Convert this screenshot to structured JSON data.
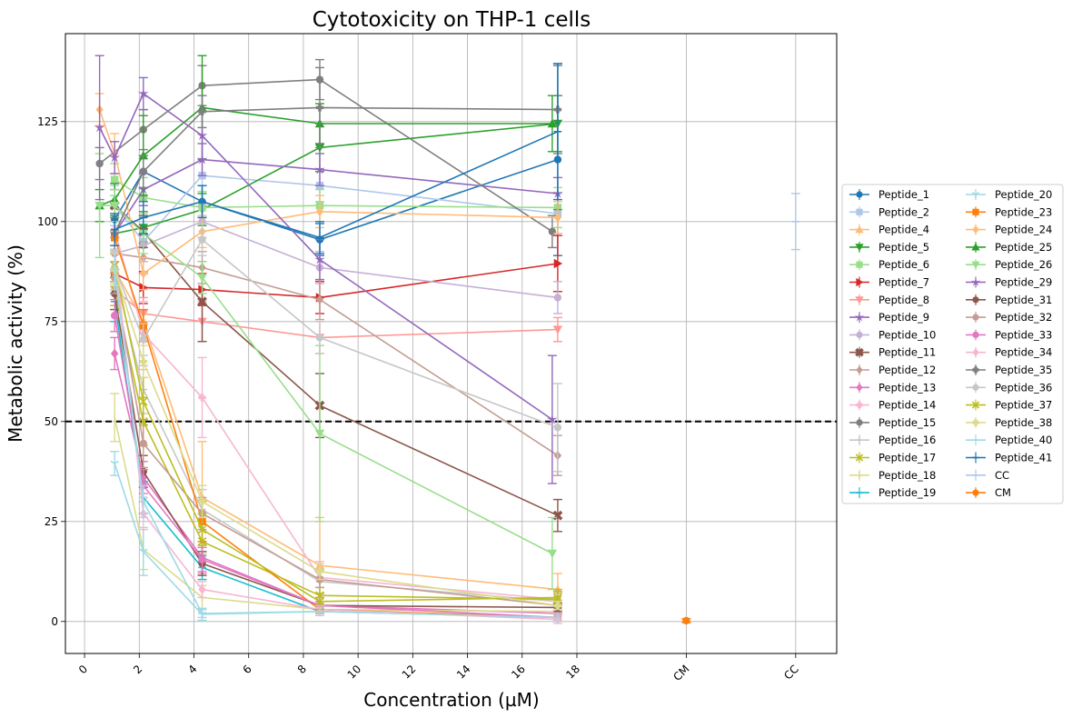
{
  "chart_data": {
    "type": "line",
    "title": "Cytotoxicity on THP-1 cells",
    "xlabel": "Concentration (µM)",
    "ylabel": "Metabolic activity (%)",
    "xlim": [
      -0.7,
      27.5
    ],
    "ylim": [
      -8,
      147
    ],
    "x_ticks": [
      0,
      2,
      4,
      6,
      8,
      10,
      12,
      14,
      16,
      18
    ],
    "x_tick_labels": [
      "0",
      "2",
      "4",
      "6",
      "8",
      "10",
      "12",
      "14",
      "16",
      "18"
    ],
    "x_extra_ticks": [
      {
        "x": 22,
        "label": "CM"
      },
      {
        "x": 26,
        "label": "CC"
      }
    ],
    "y_ticks": [
      0,
      25,
      50,
      75,
      100,
      125
    ],
    "y_tick_labels": [
      "0",
      "25",
      "50",
      "75",
      "100",
      "125"
    ],
    "reference_line": {
      "y": 50,
      "style": "dashed",
      "color": "#000000"
    },
    "grid": true,
    "legend_position": "right",
    "legend_columns": 2,
    "series": [
      {
        "name": "Peptide_1",
        "color": "#1f77b4",
        "marker": "o",
        "x": [
          1.1,
          2.15,
          4.3,
          8.6,
          17.3
        ],
        "y": [
          100.5,
          112.5,
          105,
          95.5,
          115.5
        ],
        "err": [
          3,
          4,
          4,
          4,
          24
        ]
      },
      {
        "name": "Peptide_2",
        "color": "#aec7e8",
        "marker": "s",
        "x": [
          1.1,
          2.15,
          4.3,
          8.6,
          17.3
        ],
        "y": [
          104,
          95,
          111.5,
          109,
          102
        ],
        "err": [
          5,
          5,
          4,
          4,
          5
        ]
      },
      {
        "name": "Peptide_4",
        "color": "#ffbb78",
        "marker": "^",
        "x": [
          1.1,
          2.15,
          4.3,
          8.6,
          17.3
        ],
        "y": [
          88,
          75,
          31,
          14,
          8
        ],
        "err": [
          5,
          12,
          14,
          12,
          4
        ]
      },
      {
        "name": "Peptide_5",
        "color": "#2ca02c",
        "marker": "v",
        "x": [
          1.1,
          2.15,
          4.3,
          8.6,
          17.3
        ],
        "y": [
          97,
          98.5,
          103,
          118.5,
          124.5
        ],
        "err": [
          3,
          4,
          4,
          6,
          7
        ]
      },
      {
        "name": "Peptide_6",
        "color": "#98df8a",
        "marker": "s",
        "x": [
          1.1,
          2.15,
          4.3,
          8.6,
          17.3
        ],
        "y": [
          110.5,
          106,
          103.5,
          104,
          103.5
        ],
        "err": [
          4,
          5,
          4,
          4,
          5
        ]
      },
      {
        "name": "Peptide_7",
        "color": "#d62728",
        "marker": ">",
        "x": [
          1.1,
          2.15,
          4.3,
          8.6,
          17.3
        ],
        "y": [
          87,
          83.5,
          83,
          81,
          89.5
        ],
        "err": [
          5,
          4,
          4,
          4,
          7
        ]
      },
      {
        "name": "Peptide_8",
        "color": "#ff9896",
        "marker": "v",
        "x": [
          1.1,
          2.15,
          4.3,
          8.6,
          17.3
        ],
        "y": [
          83,
          77,
          75,
          71,
          73
        ],
        "err": [
          5,
          4,
          5,
          4,
          3
        ]
      },
      {
        "name": "Peptide_9",
        "color": "#9467bd",
        "marker": "*",
        "x": [
          1.1,
          2.15,
          4.3,
          8.6,
          17.3
        ],
        "y": [
          97,
          108,
          115.5,
          113,
          107
        ],
        "err": [
          4,
          4,
          4,
          4,
          4
        ]
      },
      {
        "name": "Peptide_10",
        "color": "#c5b0d5",
        "marker": "h",
        "x": [
          1.1,
          2.15,
          4.3,
          8.6,
          17.3
        ],
        "y": [
          92,
          94,
          100,
          88.5,
          81
        ],
        "err": [
          4,
          4,
          4,
          4,
          4
        ]
      },
      {
        "name": "Peptide_11",
        "color": "#8c564b",
        "marker": "X",
        "x": [
          1.1,
          2.15,
          4.3,
          8.6,
          17.3
        ],
        "y": [
          104,
          97.5,
          80,
          54,
          26.5
        ],
        "err": [
          4,
          4,
          10,
          8,
          4
        ]
      },
      {
        "name": "Peptide_12",
        "color": "#c49c94",
        "marker": "D",
        "x": [
          1.1,
          2.15,
          4.3,
          8.6,
          17.3
        ],
        "y": [
          92,
          91,
          88.5,
          80.5,
          41.5
        ],
        "err": [
          4,
          4,
          4,
          5,
          5
        ]
      },
      {
        "name": "Peptide_13",
        "color": "#e377c2",
        "marker": "d",
        "x": [
          1.1,
          2.15,
          4.3,
          8.6,
          17.3
        ],
        "y": [
          67,
          36,
          16,
          4,
          2
        ],
        "err": [
          4,
          4,
          4,
          2,
          2
        ]
      },
      {
        "name": "Peptide_14",
        "color": "#f7b6d2",
        "marker": "P",
        "x": [
          1.1,
          2.15,
          4.3,
          8.6,
          17.3
        ],
        "y": [
          98,
          72,
          56,
          11,
          5.5
        ],
        "err": [
          4,
          8,
          10,
          4,
          2
        ]
      },
      {
        "name": "Peptide_15",
        "color": "#7f7f7f",
        "marker": "o",
        "x": [
          0.55,
          2.15,
          4.3,
          8.6,
          17.1
        ],
        "y": [
          114.5,
          123,
          134,
          135.5,
          97.5
        ],
        "err": [
          4,
          5,
          5,
          5,
          4
        ]
      },
      {
        "name": "Peptide_16",
        "color": "#c7c7c7",
        "marker": "+",
        "x": [
          1.1,
          2.15,
          4.3,
          8.6,
          17.3
        ],
        "y": [
          87,
          58,
          28,
          10,
          5
        ],
        "err": [
          5,
          6,
          5,
          3,
          2
        ]
      },
      {
        "name": "Peptide_17",
        "color": "#bcbd22",
        "marker": "x",
        "x": [
          1.1,
          2.15,
          4.3,
          8.6,
          17.3
        ],
        "y": [
          83,
          50,
          20,
          6.5,
          5.5
        ],
        "err": [
          4,
          6,
          5,
          2,
          2
        ]
      },
      {
        "name": "Peptide_18",
        "color": "#dbdb8d",
        "marker": "|",
        "x": [
          1.1,
          2.15,
          4.3,
          8.6,
          17.3
        ],
        "y": [
          51,
          18,
          6,
          3,
          2.5
        ],
        "err": [
          6,
          5,
          3,
          1,
          1
        ]
      },
      {
        "name": "Peptide_19",
        "color": "#17becf",
        "marker": "_",
        "x": [
          1.1,
          2.15,
          4.3,
          8.6,
          17.3
        ],
        "y": [
          80,
          31,
          13.5,
          2.5,
          1
        ],
        "err": [
          5,
          4,
          3,
          1,
          1
        ]
      },
      {
        "name": "Peptide_20",
        "color": "#9edae5",
        "marker": "1",
        "x": [
          1.1,
          2.15,
          4.3,
          8.6,
          17.3
        ],
        "y": [
          39.5,
          17.5,
          1.8,
          2.5,
          1
        ],
        "err": [
          3,
          6,
          1.5,
          1,
          1
        ]
      },
      {
        "name": "Peptide_23",
        "color": "#ff7f0e",
        "marker": "s",
        "x": [
          1.1,
          2.15,
          4.3,
          8.6,
          17.3
        ],
        "y": [
          96,
          74,
          25,
          3,
          1
        ],
        "err": [
          4,
          4,
          5,
          1,
          1
        ]
      },
      {
        "name": "Peptide_24",
        "color": "#ffbb78",
        "marker": "D",
        "x": [
          0.55,
          1.1,
          2.15,
          4.3,
          8.6,
          17.3
        ],
        "y": [
          128,
          117,
          87,
          97.5,
          102.5,
          101
        ],
        "err": [
          4,
          5,
          4,
          4,
          4,
          4
        ]
      },
      {
        "name": "Peptide_25",
        "color": "#2ca02c",
        "marker": "^",
        "x": [
          0.55,
          1.1,
          2.15,
          4.3,
          8.6,
          17.1
        ],
        "y": [
          104,
          105.5,
          116.5,
          128.5,
          124.5,
          124.5
        ],
        "err": [
          4,
          4,
          10,
          13,
          5,
          7
        ]
      },
      {
        "name": "Peptide_26",
        "color": "#98df8a",
        "marker": "v",
        "x": [
          0.55,
          1.1,
          2.15,
          4.3,
          8.6,
          17.1
        ],
        "y": [
          104,
          104,
          97,
          86,
          47,
          17
        ],
        "err": [
          13,
          4,
          5,
          4,
          22,
          9
        ]
      },
      {
        "name": "Peptide_29",
        "color": "#9467bd",
        "marker": "*",
        "x": [
          0.55,
          1.1,
          2.15,
          4.3,
          8.6,
          17.1
        ],
        "y": [
          123.5,
          116,
          132,
          121.5,
          90.5,
          50.5
        ],
        "err": [
          18,
          4,
          4,
          6,
          5,
          16
        ]
      },
      {
        "name": "Peptide_31",
        "color": "#8c564b",
        "marker": "h",
        "x": [
          1.1,
          2.15,
          4.3,
          8.6,
          17.3
        ],
        "y": [
          82,
          37.5,
          14.5,
          4,
          3.5
        ],
        "err": [
          4,
          4,
          3,
          1,
          1
        ]
      },
      {
        "name": "Peptide_32",
        "color": "#c49c94",
        "marker": "h",
        "x": [
          1.1,
          2.15,
          4.3,
          8.6,
          17.3
        ],
        "y": [
          86,
          44.5,
          27,
          10.5,
          4
        ],
        "err": [
          4,
          6,
          4,
          2,
          1
        ]
      },
      {
        "name": "Peptide_33",
        "color": "#e377c2",
        "marker": "p",
        "x": [
          1.1,
          2.15,
          4.3,
          8.6,
          17.3
        ],
        "y": [
          76.5,
          34,
          15.5,
          4,
          1
        ],
        "err": [
          4,
          4,
          3,
          1,
          1
        ]
      },
      {
        "name": "Peptide_34",
        "color": "#f7b6d2",
        "marker": "d",
        "x": [
          1.1,
          2.15,
          4.3,
          8.6,
          17.3
        ],
        "y": [
          92.5,
          27,
          8,
          3,
          0.5
        ],
        "err": [
          5,
          4,
          2,
          1,
          1
        ]
      },
      {
        "name": "Peptide_35",
        "color": "#7f7f7f",
        "marker": "P",
        "x": [
          1.1,
          2.15,
          4.3,
          8.6,
          17.3
        ],
        "y": [
          97,
          112.5,
          127.5,
          128.5,
          128
        ],
        "err": [
          4,
          4,
          4,
          10,
          11
        ]
      },
      {
        "name": "Peptide_36",
        "color": "#c7c7c7",
        "marker": "o",
        "x": [
          1.1,
          2.15,
          4.3,
          8.6,
          17.3
        ],
        "y": [
          88.5,
          70.5,
          95.5,
          71,
          48.5
        ],
        "err": [
          4,
          4,
          4,
          4,
          11
        ]
      },
      {
        "name": "Peptide_37",
        "color": "#bcbd22",
        "marker": "x",
        "x": [
          1.1,
          2.15,
          4.3,
          8.6,
          17.3
        ],
        "y": [
          89,
          55,
          23,
          5,
          6
        ],
        "err": [
          4,
          6,
          4,
          2,
          2
        ]
      },
      {
        "name": "Peptide_38",
        "color": "#dbdb8d",
        "marker": "P",
        "x": [
          1.1,
          2.15,
          4.3,
          8.6,
          17.3
        ],
        "y": [
          88,
          65,
          30,
          12.5,
          4
        ],
        "err": [
          4,
          4,
          4,
          2,
          1
        ]
      },
      {
        "name": "Peptide_40",
        "color": "#9edae5",
        "marker": "_",
        "x": [
          1.1,
          2.15,
          4.3,
          8.6,
          17.3
        ],
        "y": [
          88,
          30,
          2,
          2.5,
          1
        ],
        "err": [
          5,
          4,
          1,
          1,
          1
        ]
      },
      {
        "name": "Peptide_41",
        "color": "#1f77b4",
        "marker": "_",
        "x": [
          1.1,
          2.15,
          4.3,
          8.6,
          17.3
        ],
        "y": [
          98,
          101,
          105,
          96,
          122.5
        ],
        "err": [
          4,
          4,
          4,
          4,
          17
        ]
      },
      {
        "name": "CC",
        "color": "#aec7e8",
        "marker": "_",
        "x": [
          26
        ],
        "y": [
          100
        ],
        "err": [
          7
        ]
      },
      {
        "name": "CM",
        "color": "#ff7f0e",
        "marker": "o",
        "x": [
          22
        ],
        "y": [
          0.2
        ],
        "err": [
          0.5
        ]
      }
    ]
  }
}
